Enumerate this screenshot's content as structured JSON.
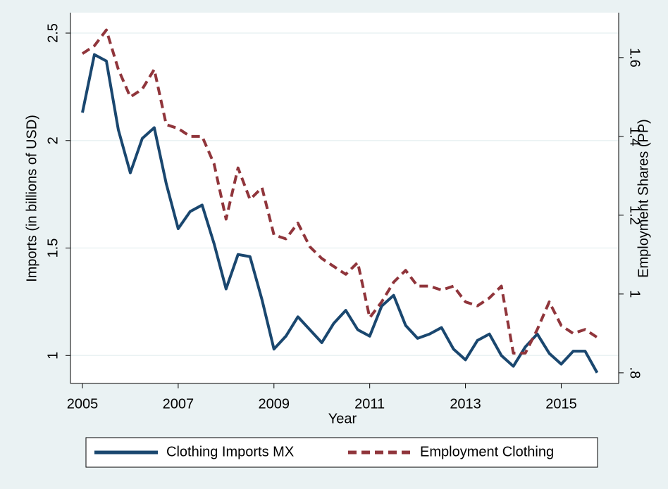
{
  "chart_data": {
    "type": "line",
    "x_label": "Year",
    "y_label": "Imports (in billions of USD)",
    "y2_label": "Employment Shares (PP)",
    "x": [
      2005,
      2005.25,
      2005.5,
      2005.75,
      2006,
      2006.25,
      2006.5,
      2006.75,
      2007,
      2007.25,
      2007.5,
      2007.75,
      2008,
      2008.25,
      2008.5,
      2008.75,
      2009,
      2009.25,
      2009.5,
      2009.75,
      2010,
      2010.25,
      2010.5,
      2010.75,
      2011,
      2011.25,
      2011.5,
      2011.75,
      2012,
      2012.25,
      2012.5,
      2012.75,
      2013,
      2013.25,
      2013.5,
      2013.75,
      2014,
      2014.25,
      2014.5,
      2014.75,
      2015,
      2015.25,
      2015.5,
      2015.75
    ],
    "series": [
      {
        "name": "Clothing Imports MX",
        "color": "#1a476f",
        "dashed": false,
        "values": [
          2.13,
          2.4,
          2.37,
          2.05,
          1.85,
          2.01,
          2.06,
          1.8,
          1.59,
          1.67,
          1.7,
          1.52,
          1.31,
          1.47,
          1.46,
          1.26,
          1.03,
          1.09,
          1.18,
          1.12,
          1.06,
          1.15,
          1.21,
          1.12,
          1.09,
          1.23,
          1.28,
          1.14,
          1.08,
          1.1,
          1.13,
          1.03,
          0.98,
          1.07,
          1.1,
          1.0,
          0.95,
          1.04,
          1.1,
          1.01,
          0.96,
          1.02,
          1.02,
          0.92
        ]
      },
      {
        "name": "Employment Clothing",
        "color": "#90353b",
        "dashed": true,
        "axis": "y2",
        "values": [
          1.61,
          1.63,
          1.67,
          1.57,
          1.5,
          1.52,
          1.57,
          1.43,
          1.42,
          1.4,
          1.4,
          1.33,
          1.19,
          1.32,
          1.24,
          1.27,
          1.15,
          1.14,
          1.18,
          1.12,
          1.09,
          1.07,
          1.05,
          1.08,
          0.94,
          0.98,
          1.03,
          1.06,
          1.02,
          1.02,
          1.01,
          1.02,
          0.98,
          0.97,
          0.99,
          1.02,
          0.85,
          0.85,
          0.91,
          0.98,
          0.92,
          0.9,
          0.91,
          0.89
        ]
      }
    ],
    "xlim": [
      2004.75,
      2016.2
    ],
    "xticks": [
      2005,
      2007,
      2009,
      2011,
      2013,
      2015
    ],
    "ylim": [
      0.87,
      2.595
    ],
    "yticks": [
      1,
      1.5,
      2,
      2.5
    ],
    "y2lim": [
      0.773,
      1.714
    ],
    "y2ticks": [
      {
        "value": 0.8,
        "label": ".8"
      },
      1,
      1.2,
      1.4,
      1.6
    ],
    "grid": true,
    "legend": "bottom"
  }
}
